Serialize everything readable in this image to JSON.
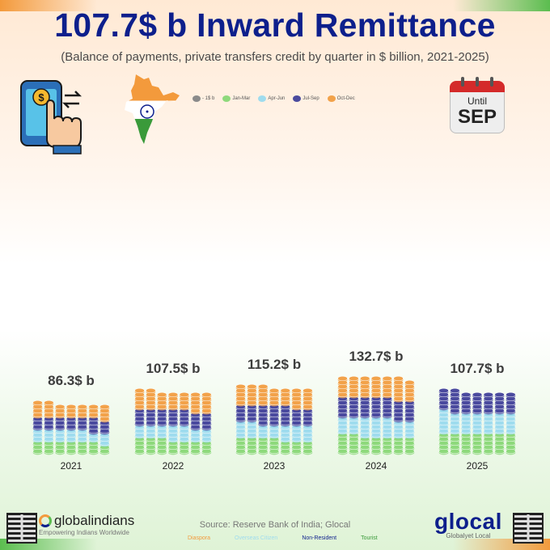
{
  "header": {
    "title": "107.7$ b Inward Remittance",
    "subtitle": "(Balance of payments, private transfers credit by quarter in $ billion, 2021-2025)"
  },
  "calendar": {
    "until": "Until",
    "month": "SEP"
  },
  "legend": {
    "unit": "- 1$ b",
    "q1": "Jan-Mar",
    "q2": "Apr-Jun",
    "q3": "Jul-Sep",
    "q4": "Oct-Dec"
  },
  "colors": {
    "q1": "#8ed97c",
    "q2": "#9fdcee",
    "q3": "#4a4a9e",
    "q4": "#f2a24a",
    "title": "#0d1f8c"
  },
  "chart_data": {
    "type": "bar",
    "subtype": "stacked-pictogram",
    "title": "107.7$ b Inward Remittance",
    "unit": "$ billion (1 coin = 1$ b)",
    "categories": [
      "2021",
      "2022",
      "2023",
      "2024",
      "2025"
    ],
    "totals_labels": [
      "86.3$ b",
      "107.5$ b",
      "115.2$ b",
      "132.7$ b",
      "107.7$ b"
    ],
    "totals": [
      86.3,
      107.5,
      115.2,
      132.7,
      107.7
    ],
    "series": [
      {
        "name": "Jan-Mar",
        "values": [
          20,
          24,
          25,
          30,
          35
        ]
      },
      {
        "name": "Apr-Jun",
        "values": [
          20,
          23,
          26,
          31,
          36
        ]
      },
      {
        "name": "Jul-Sep",
        "values": [
          22,
          28,
          31,
          35,
          36
        ]
      },
      {
        "name": "Oct-Dec",
        "values": [
          24,
          32,
          33,
          36,
          0
        ]
      }
    ]
  },
  "footer": {
    "source": "Source: Reserve Bank of India; Glocal",
    "tags": [
      "Diaspora",
      "Overseas Citizen",
      "Non-Resident",
      "Tourist"
    ],
    "brand_left": "globalindians",
    "brand_left_tag": "Empowering Indians Worldwide",
    "brand_right": "glocal",
    "brand_right_tag": "Globalyet Local"
  }
}
